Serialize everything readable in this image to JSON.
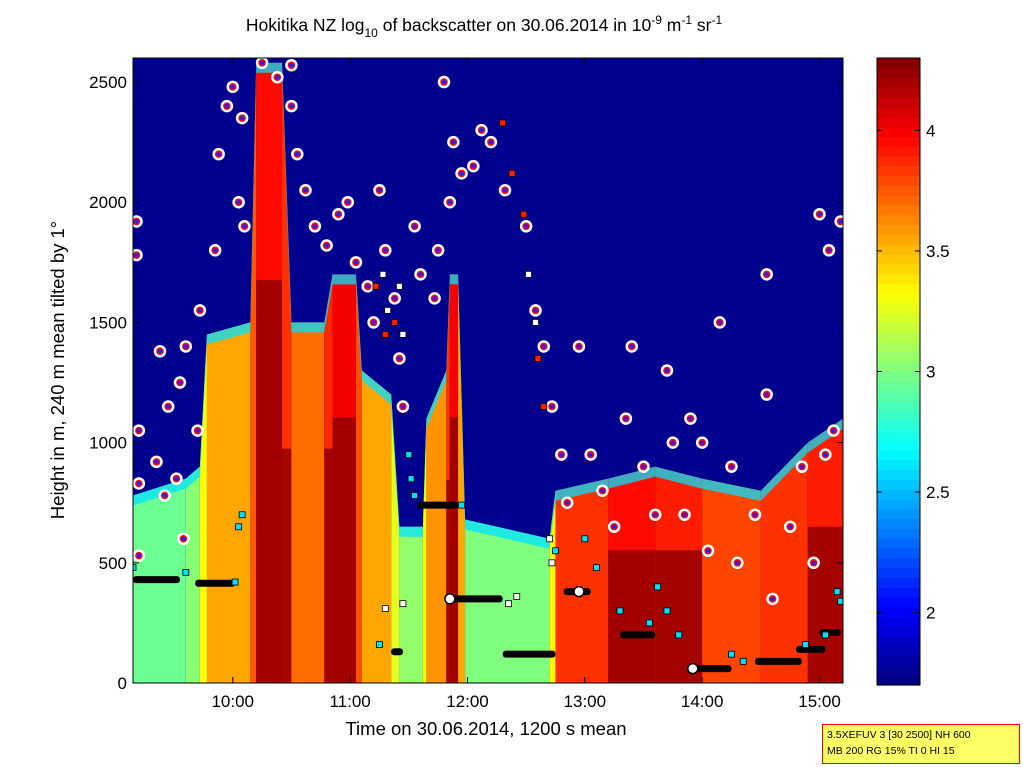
{
  "chart_data": {
    "type": "heatmap",
    "title": {
      "prefix": "Hokitika NZ log",
      "prefix_sub": "10",
      "middle": " of backscatter on 30.06.2014 in 10",
      "exp1": "-9",
      "m_unit": " m",
      "exp2": "-1",
      "sr_unit": " sr",
      "exp3": "-1"
    },
    "xlabel": "Time on 30.06.2014, 1200 s mean",
    "ylabel": "Height in m, 240 m mean tilted by 1°",
    "x_range_hours": [
      9.15,
      15.2
    ],
    "ylim": [
      0,
      2600
    ],
    "x_ticks": [
      {
        "label": "10:00",
        "hour": 10
      },
      {
        "label": "11:00",
        "hour": 11
      },
      {
        "label": "12:00",
        "hour": 12
      },
      {
        "label": "13:00",
        "hour": 13
      },
      {
        "label": "14:00",
        "hour": 14
      },
      {
        "label": "15:00",
        "hour": 15
      }
    ],
    "y_ticks": [
      0,
      500,
      1000,
      1500,
      2000,
      2500
    ],
    "colorbar": {
      "range": [
        1.7,
        4.3
      ],
      "ticks": [
        "2",
        "2.5",
        "3",
        "3.5",
        "4"
      ],
      "colormap": "jet"
    },
    "background_color": "#00008f",
    "columns": [
      {
        "t": 9.15,
        "top": 780,
        "floor": 2.95
      },
      {
        "t": 9.6,
        "top": 850,
        "floor": 2.95
      },
      {
        "t": 9.72,
        "top": 900,
        "floor": 3.1
      },
      {
        "t": 9.78,
        "top": 1450,
        "floor": 3.5
      },
      {
        "t": 10.15,
        "top": 1500,
        "floor": 3.6
      },
      {
        "t": 10.2,
        "top": 2580,
        "floor": 3.9
      },
      {
        "t": 10.42,
        "top": 2580,
        "floor": 4.0
      },
      {
        "t": 10.5,
        "top": 1500,
        "floor": 3.7
      },
      {
        "t": 10.78,
        "top": 1500,
        "floor": 3.7
      },
      {
        "t": 10.85,
        "top": 1700,
        "floor": 4.05
      },
      {
        "t": 11.05,
        "top": 1700,
        "floor": 3.95
      },
      {
        "t": 11.1,
        "top": 1300,
        "floor": 3.6
      },
      {
        "t": 11.35,
        "top": 1200,
        "floor": 3.5
      },
      {
        "t": 11.42,
        "top": 650,
        "floor": 3.0
      },
      {
        "t": 11.62,
        "top": 650,
        "floor": 3.1
      },
      {
        "t": 11.65,
        "top": 1100,
        "floor": 3.5
      },
      {
        "t": 11.82,
        "top": 1300,
        "floor": 3.7
      },
      {
        "t": 11.85,
        "top": 1700,
        "floor": 4.0
      },
      {
        "t": 11.92,
        "top": 1700,
        "floor": 4.0
      },
      {
        "t": 11.98,
        "top": 680,
        "floor": 3.1
      },
      {
        "t": 12.7,
        "top": 600,
        "floor": 2.9
      },
      {
        "t": 12.75,
        "top": 800,
        "floor": 3.8
      },
      {
        "t": 13.2,
        "top": 850,
        "floor": 3.9
      },
      {
        "t": 13.6,
        "top": 900,
        "floor": 4.0
      },
      {
        "t": 14.0,
        "top": 850,
        "floor": 3.8
      },
      {
        "t": 14.5,
        "top": 800,
        "floor": 3.8
      },
      {
        "t": 14.9,
        "top": 1000,
        "floor": 3.9
      },
      {
        "t": 15.2,
        "top": 1100,
        "floor": 3.9
      }
    ],
    "red_dot_markers": [
      {
        "t": 9.18,
        "h": 1920
      },
      {
        "t": 9.18,
        "h": 1780
      },
      {
        "t": 9.2,
        "h": 1050
      },
      {
        "t": 9.2,
        "h": 830
      },
      {
        "t": 9.2,
        "h": 530
      },
      {
        "t": 9.38,
        "h": 1380
      },
      {
        "t": 9.35,
        "h": 920
      },
      {
        "t": 9.45,
        "h": 1150
      },
      {
        "t": 9.42,
        "h": 780
      },
      {
        "t": 9.55,
        "h": 1250
      },
      {
        "t": 9.52,
        "h": 850
      },
      {
        "t": 9.6,
        "h": 1400
      },
      {
        "t": 9.58,
        "h": 600
      },
      {
        "t": 9.72,
        "h": 1550
      },
      {
        "t": 9.7,
        "h": 1050
      },
      {
        "t": 9.85,
        "h": 1800
      },
      {
        "t": 9.88,
        "h": 2200
      },
      {
        "t": 9.95,
        "h": 2400
      },
      {
        "t": 10.0,
        "h": 2480
      },
      {
        "t": 10.08,
        "h": 2350
      },
      {
        "t": 10.05,
        "h": 2000
      },
      {
        "t": 10.1,
        "h": 1900
      },
      {
        "t": 10.25,
        "h": 2580
      },
      {
        "t": 10.38,
        "h": 2520
      },
      {
        "t": 10.5,
        "h": 2400
      },
      {
        "t": 10.5,
        "h": 2570
      },
      {
        "t": 10.55,
        "h": 2200
      },
      {
        "t": 10.62,
        "h": 2050
      },
      {
        "t": 10.7,
        "h": 1900
      },
      {
        "t": 10.8,
        "h": 1820
      },
      {
        "t": 10.9,
        "h": 1950
      },
      {
        "t": 10.98,
        "h": 2000
      },
      {
        "t": 11.05,
        "h": 1750
      },
      {
        "t": 11.15,
        "h": 1650
      },
      {
        "t": 11.2,
        "h": 1500
      },
      {
        "t": 11.25,
        "h": 2050
      },
      {
        "t": 11.3,
        "h": 1800
      },
      {
        "t": 11.38,
        "h": 1600
      },
      {
        "t": 11.42,
        "h": 1350
      },
      {
        "t": 11.45,
        "h": 1150
      },
      {
        "t": 11.55,
        "h": 1900
      },
      {
        "t": 11.6,
        "h": 1700
      },
      {
        "t": 11.72,
        "h": 1600
      },
      {
        "t": 11.75,
        "h": 1800
      },
      {
        "t": 11.85,
        "h": 2000
      },
      {
        "t": 11.8,
        "h": 2500
      },
      {
        "t": 11.88,
        "h": 2250
      },
      {
        "t": 11.95,
        "h": 2120
      },
      {
        "t": 12.05,
        "h": 2150
      },
      {
        "t": 12.12,
        "h": 2300
      },
      {
        "t": 12.2,
        "h": 2250
      },
      {
        "t": 12.32,
        "h": 2050
      },
      {
        "t": 12.5,
        "h": 1900
      },
      {
        "t": 12.58,
        "h": 1550
      },
      {
        "t": 12.65,
        "h": 1400
      },
      {
        "t": 12.72,
        "h": 1150
      },
      {
        "t": 12.8,
        "h": 950
      },
      {
        "t": 12.85,
        "h": 750
      },
      {
        "t": 12.95,
        "h": 1400
      },
      {
        "t": 13.05,
        "h": 950
      },
      {
        "t": 13.15,
        "h": 800
      },
      {
        "t": 13.25,
        "h": 650
      },
      {
        "t": 13.35,
        "h": 1100
      },
      {
        "t": 13.4,
        "h": 1400
      },
      {
        "t": 13.5,
        "h": 900
      },
      {
        "t": 13.6,
        "h": 700
      },
      {
        "t": 13.7,
        "h": 1300
      },
      {
        "t": 13.75,
        "h": 1000
      },
      {
        "t": 13.85,
        "h": 700
      },
      {
        "t": 13.9,
        "h": 1100
      },
      {
        "t": 14.0,
        "h": 1000
      },
      {
        "t": 14.05,
        "h": 550
      },
      {
        "t": 14.15,
        "h": 1500
      },
      {
        "t": 14.25,
        "h": 900
      },
      {
        "t": 14.3,
        "h": 500
      },
      {
        "t": 14.45,
        "h": 700
      },
      {
        "t": 14.55,
        "h": 1200
      },
      {
        "t": 14.55,
        "h": 1700
      },
      {
        "t": 14.6,
        "h": 350
      },
      {
        "t": 14.75,
        "h": 650
      },
      {
        "t": 14.85,
        "h": 900
      },
      {
        "t": 14.95,
        "h": 500
      },
      {
        "t": 15.05,
        "h": 950
      },
      {
        "t": 15.0,
        "h": 1950
      },
      {
        "t": 15.08,
        "h": 1800
      },
      {
        "t": 15.12,
        "h": 1050
      },
      {
        "t": 15.18,
        "h": 1920
      }
    ],
    "layer_markers": [
      {
        "t0": 9.15,
        "t1": 9.55,
        "h": 430,
        "color": "#000000"
      },
      {
        "t0": 9.68,
        "t1": 10.02,
        "h": 415,
        "color": "#000000"
      },
      {
        "t0": 11.35,
        "t1": 11.45,
        "h": 130,
        "color": "#000000"
      },
      {
        "t0": 11.57,
        "t1": 11.92,
        "h": 740,
        "color": "#000000"
      },
      {
        "t0": 11.82,
        "t1": 12.3,
        "h": 350,
        "color": "#000000"
      },
      {
        "t0": 12.3,
        "t1": 12.75,
        "h": 120,
        "color": "#000000"
      },
      {
        "t0": 12.82,
        "t1": 13.05,
        "h": 380,
        "color": "#000000"
      },
      {
        "t0": 13.3,
        "t1": 13.6,
        "h": 200,
        "color": "#000000"
      },
      {
        "t0": 13.9,
        "t1": 14.25,
        "h": 60,
        "color": "#000000"
      },
      {
        "t0": 14.45,
        "t1": 14.85,
        "h": 90,
        "color": "#000000"
      },
      {
        "t0": 14.8,
        "t1": 15.05,
        "h": 140,
        "color": "#000000"
      },
      {
        "t0": 15.0,
        "t1": 15.18,
        "h": 210,
        "color": "#000000"
      }
    ],
    "cyan_markers": [
      {
        "t": 9.15,
        "h": 480
      },
      {
        "t": 9.6,
        "h": 460
      },
      {
        "t": 10.05,
        "h": 650
      },
      {
        "t": 10.08,
        "h": 700
      },
      {
        "t": 10.02,
        "h": 420
      },
      {
        "t": 11.25,
        "h": 160
      },
      {
        "t": 11.5,
        "h": 950
      },
      {
        "t": 11.52,
        "h": 850
      },
      {
        "t": 11.55,
        "h": 780
      },
      {
        "t": 11.95,
        "h": 740
      },
      {
        "t": 12.75,
        "h": 550
      },
      {
        "t": 13.0,
        "h": 600
      },
      {
        "t": 13.1,
        "h": 480
      },
      {
        "t": 13.3,
        "h": 300
      },
      {
        "t": 13.55,
        "h": 250
      },
      {
        "t": 13.62,
        "h": 400
      },
      {
        "t": 13.7,
        "h": 300
      },
      {
        "t": 13.8,
        "h": 200
      },
      {
        "t": 14.25,
        "h": 120
      },
      {
        "t": 14.35,
        "h": 90
      },
      {
        "t": 14.88,
        "h": 160
      },
      {
        "t": 15.05,
        "h": 200
      },
      {
        "t": 15.15,
        "h": 380
      },
      {
        "t": 15.18,
        "h": 340
      }
    ],
    "white_markers": [
      {
        "t": 11.28,
        "h": 1700
      },
      {
        "t": 11.32,
        "h": 1550
      },
      {
        "t": 11.42,
        "h": 1650
      },
      {
        "t": 11.45,
        "h": 1450
      },
      {
        "t": 11.45,
        "h": 330
      },
      {
        "t": 11.3,
        "h": 310
      },
      {
        "t": 12.35,
        "h": 330
      },
      {
        "t": 12.42,
        "h": 360
      },
      {
        "t": 12.52,
        "h": 1700
      },
      {
        "t": 12.58,
        "h": 1500
      },
      {
        "t": 12.7,
        "h": 600
      },
      {
        "t": 12.72,
        "h": 500
      }
    ],
    "red_square_markers": [
      {
        "t": 11.22,
        "h": 1650
      },
      {
        "t": 11.3,
        "h": 1450
      },
      {
        "t": 11.38,
        "h": 1500
      },
      {
        "t": 12.3,
        "h": 2330
      },
      {
        "t": 12.38,
        "h": 2120
      },
      {
        "t": 12.48,
        "h": 1950
      },
      {
        "t": 12.6,
        "h": 1350
      },
      {
        "t": 12.65,
        "h": 1150
      }
    ],
    "white_circle_markers": [
      {
        "t": 11.85,
        "h": 350
      },
      {
        "t": 12.95,
        "h": 380
      },
      {
        "t": 13.92,
        "h": 60
      }
    ]
  },
  "info_box": {
    "line1": "3.5XEFUV 3 [30 2500] NH 600",
    "line2": "MB 200 RG 15% TI 0 HI 15"
  }
}
